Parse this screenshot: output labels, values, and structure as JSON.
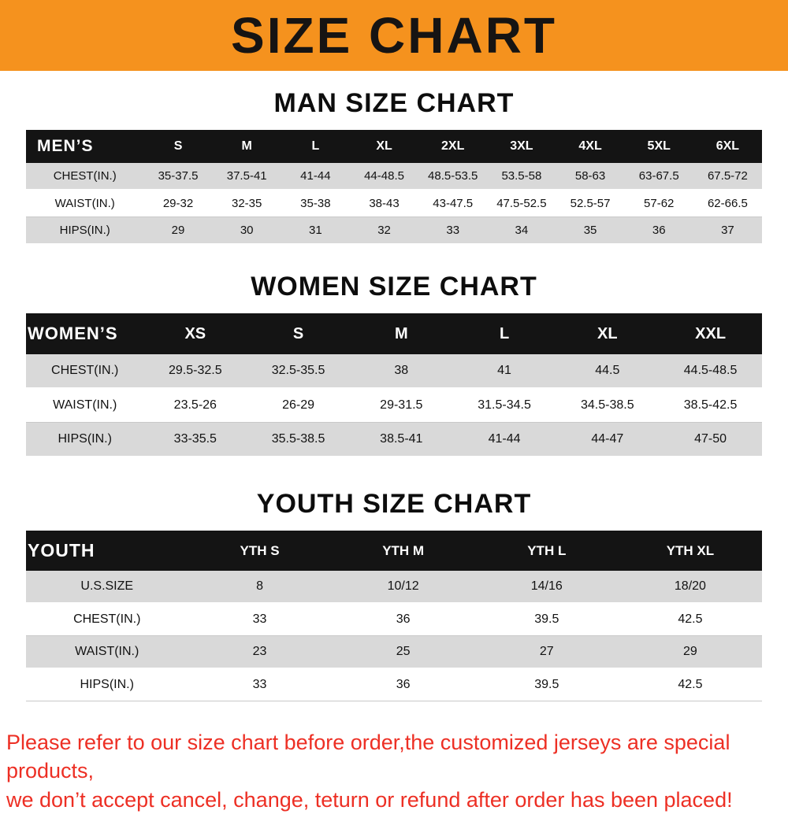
{
  "theme": {
    "banner-bg": "#f5921e",
    "header-bg": "#141414",
    "stripe-gray": "#d9d9d9",
    "footer-red": "#ed2f24"
  },
  "banner": {
    "title": "SIZE CHART"
  },
  "sections": [
    {
      "heading": "MAN SIZE CHART",
      "table": {
        "header": [
          "MEN’S",
          "S",
          "M",
          "L",
          "XL",
          "2XL",
          "3XL",
          "4XL",
          "5XL",
          "6XL"
        ],
        "rows": [
          [
            "CHEST(IN.)",
            "35-37.5",
            "37.5-41",
            "41-44",
            "44-48.5",
            "48.5-53.5",
            "53.5-58",
            "58-63",
            "63-67.5",
            "67.5-72"
          ],
          [
            "WAIST(IN.)",
            "29-32",
            "32-35",
            "35-38",
            "38-43",
            "43-47.5",
            "47.5-52.5",
            "52.5-57",
            "57-62",
            "62-66.5"
          ],
          [
            "HIPS(IN.)",
            "29",
            "30",
            "31",
            "32",
            "33",
            "34",
            "35",
            "36",
            "37"
          ]
        ]
      }
    },
    {
      "heading": "WOMEN SIZE CHART",
      "table": {
        "header": [
          "WOMEN’S",
          "XS",
          "S",
          "M",
          "L",
          "XL",
          "XXL"
        ],
        "rows": [
          [
            "CHEST(IN.)",
            "29.5-32.5",
            "32.5-35.5",
            "38",
            "41",
            "44.5",
            "44.5-48.5"
          ],
          [
            "WAIST(IN.)",
            "23.5-26",
            "26-29",
            "29-31.5",
            "31.5-34.5",
            "34.5-38.5",
            "38.5-42.5"
          ],
          [
            "HIPS(IN.)",
            "33-35.5",
            "35.5-38.5",
            "38.5-41",
            "41-44",
            "44-47",
            "47-50"
          ]
        ]
      }
    },
    {
      "heading": "YOUTH SIZE CHART",
      "table": {
        "header": [
          "YOUTH",
          "YTH S",
          "YTH M",
          "YTH L",
          "YTH XL"
        ],
        "rows": [
          [
            "U.S.SIZE",
            "8",
            "10/12",
            "14/16",
            "18/20"
          ],
          [
            "CHEST(IN.)",
            "33",
            "36",
            "39.5",
            "42.5"
          ],
          [
            "WAIST(IN.)",
            "23",
            "25",
            "27",
            "29"
          ],
          [
            "HIPS(IN.)",
            "33",
            "36",
            "39.5",
            "42.5"
          ]
        ]
      }
    }
  ],
  "footer": {
    "lines": [
      "Please refer to our size chart before order,the customized jerseys are special products,",
      "we don’t accept cancel, change, teturn or refund after order has been placed!"
    ]
  }
}
